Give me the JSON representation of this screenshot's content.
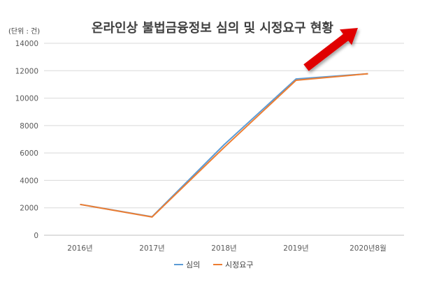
{
  "chart_data": {
    "type": "line",
    "title": "온라인상 불법금융정보 심의 및 시정요구 현황",
    "unit_label": "(단위 : 건)",
    "categories": [
      "2016년",
      "2017년",
      "2018년",
      "2019년",
      "2020년8월"
    ],
    "ylim": [
      0,
      14000
    ],
    "yticks": [
      0,
      2000,
      4000,
      6000,
      8000,
      10000,
      12000,
      14000
    ],
    "grid": true,
    "legend_position": "bottom",
    "series": [
      {
        "name": "심의",
        "color": "#5B9BD5",
        "values": [
          2250,
          1350,
          6600,
          11400,
          11780
        ]
      },
      {
        "name": "시정요구",
        "color": "#ED7D31",
        "values": [
          2250,
          1330,
          6400,
          11300,
          11780
        ]
      }
    ],
    "annotation": {
      "type": "arrow",
      "color": "#E00000",
      "direction": "up-right"
    }
  }
}
